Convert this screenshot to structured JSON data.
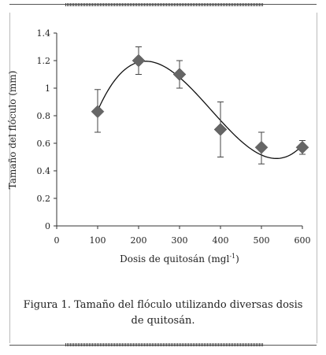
{
  "figure": {
    "caption": "Figura 1. Tamaño del flóculo utilizando diversas dosis de quitosán."
  },
  "chart_data": {
    "type": "scatter",
    "x": [
      100,
      200,
      300,
      400,
      500,
      600
    ],
    "y": [
      0.83,
      1.2,
      1.1,
      0.7,
      0.57,
      0.57
    ],
    "error_low": [
      0.68,
      1.1,
      1.0,
      0.5,
      0.45,
      0.52
    ],
    "error_high": [
      0.99,
      1.3,
      1.2,
      0.9,
      0.68,
      0.62
    ],
    "trendline": "polynomial",
    "xlabel_main": "Dosis de quitosán (mgl",
    "xlabel_sup": "-1",
    "xlabel_end": ")",
    "ylabel": "Tamaño del flóculo (mm)",
    "xlim": [
      0,
      600
    ],
    "ylim": [
      0,
      1.4
    ],
    "xticks": [
      "0",
      "100",
      "200",
      "300",
      "400",
      "500",
      "600"
    ],
    "yticks": [
      "0",
      "0.2",
      "0.4",
      "0.6",
      "0.8",
      "1",
      "1.2",
      "1.4"
    ],
    "grid": false,
    "marker": "diamond",
    "marker_color": "#666666"
  }
}
